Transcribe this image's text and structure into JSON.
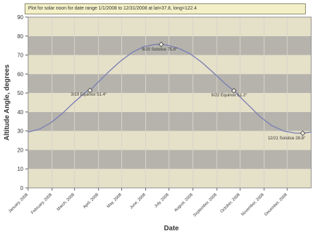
{
  "chart_data": {
    "type": "line",
    "title": "Plot for solar noon for date range 1/1/2008 to 12/31/2008 at lat=37.8, long=122.4",
    "xlabel": "Date",
    "ylabel": "Altitude Angle, degrees",
    "ylim": [
      0,
      90
    ],
    "yticks": [
      0,
      10,
      20,
      30,
      40,
      50,
      60,
      70,
      80,
      90
    ],
    "x_tick_labels": [
      "January, 2008",
      "February, 2008",
      "March, 2008",
      "April, 2008",
      "May, 2008",
      "June, 2008",
      "July, 2008",
      "August, 2008",
      "September, 2008",
      "October, 2008",
      "November, 2008",
      "December, 2008"
    ],
    "x_domain_days": [
      0,
      366
    ],
    "grid": true,
    "background_band_colors": [
      "#e5e0c8",
      "#b5b3ac"
    ],
    "series_color": "#7b7fb3",
    "series": [
      {
        "x_days": [
          0,
          15,
          30,
          45,
          60,
          75,
          80,
          90,
          105,
          120,
          135,
          150,
          165,
          172,
          180,
          195,
          210,
          225,
          240,
          255,
          266,
          270,
          285,
          300,
          315,
          330,
          345,
          355,
          366
        ],
        "values": [
          29.4,
          31.0,
          34.5,
          39.5,
          45.3,
          50.7,
          51.4,
          55.5,
          61.5,
          67.0,
          71.5,
          74.5,
          75.6,
          75.6,
          75.2,
          73.5,
          70.5,
          66.0,
          60.5,
          54.8,
          51.2,
          49.5,
          43.5,
          37.5,
          32.8,
          30.0,
          28.9,
          28.8,
          29.5
        ]
      }
    ],
    "annotations": [
      {
        "x_day": 80,
        "y": 51.4,
        "label": "3/19 Equinox 51.4°"
      },
      {
        "x_day": 172,
        "y": 75.6,
        "label": "6/20 Solstice 75.6°"
      },
      {
        "x_day": 266,
        "y": 51.2,
        "label": "9/22 Equinox 51.2°"
      },
      {
        "x_day": 355,
        "y": 28.8,
        "label": "12/21 Solstice 28.8°"
      }
    ]
  }
}
